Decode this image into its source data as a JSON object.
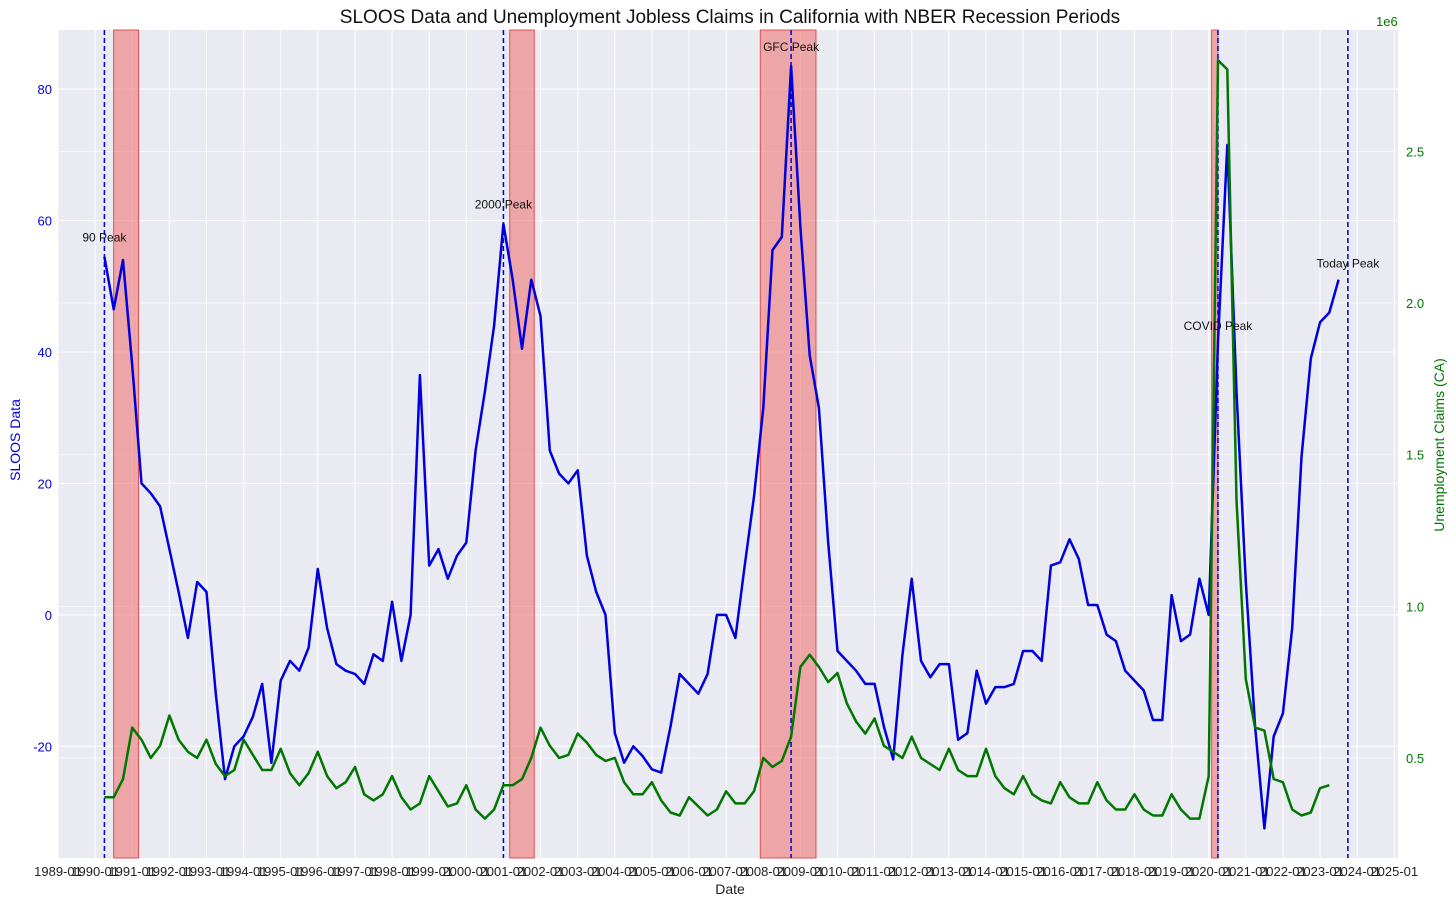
{
  "chart_data": {
    "type": "line",
    "title": "SLOOS Data and Unemployment Jobless Claims in California with NBER Recession Periods",
    "xlabel": "Date",
    "ylabel_left": "SLOOS Data",
    "ylabel_right": "Unemployment Claims (CA)",
    "right_multiplier": "1e6",
    "colors": {
      "left": "#0000dd",
      "right": "#007700",
      "recession": "#f08080",
      "peak_line": "#0000cc"
    },
    "xlim": [
      1989.0,
      2025.1
    ],
    "ylim_left": [
      -37,
      89
    ],
    "ylim_right": [
      0.17,
      2.9
    ],
    "x_ticks": [
      "1989-01",
      "1990-01",
      "1991-01",
      "1992-01",
      "1993-01",
      "1994-01",
      "1995-01",
      "1996-01",
      "1997-01",
      "1998-01",
      "1999-01",
      "2000-01",
      "2001-01",
      "2002-01",
      "2003-01",
      "2004-01",
      "2005-01",
      "2006-01",
      "2007-01",
      "2008-01",
      "2009-01",
      "2010-01",
      "2011-01",
      "2012-01",
      "2013-01",
      "2014-01",
      "2015-01",
      "2016-01",
      "2017-01",
      "2018-01",
      "2019-01",
      "2020-01",
      "2021-01",
      "2022-01",
      "2023-01",
      "2024-01",
      "2025-01"
    ],
    "y_ticks_left": [
      "-20",
      "0",
      "20",
      "40",
      "60",
      "80"
    ],
    "y_ticks_right": [
      "0.5",
      "1.0",
      "1.5",
      "2.0",
      "2.5"
    ],
    "grid": true,
    "recessions": [
      [
        1990.5,
        1991.17
      ],
      [
        2001.17,
        2001.83
      ],
      [
        2007.92,
        2009.42
      ],
      [
        2020.08,
        2020.25
      ]
    ],
    "peaks": [
      {
        "label": "90 Peak",
        "x": 1990.25,
        "y": 55
      },
      {
        "label": "2000 Peak",
        "x": 2001.0,
        "y": 60
      },
      {
        "label": "GFC Peak",
        "x": 2008.75,
        "y": 84
      },
      {
        "label": "COVID Peak",
        "x": 2020.25,
        "y": 41.5
      },
      {
        "label": "Today Peak",
        "x": 2023.75,
        "y": 51
      }
    ],
    "series": [
      {
        "axis": "left",
        "points": [
          [
            1990.25,
            54.5
          ],
          [
            1990.5,
            46.5
          ],
          [
            1990.75,
            54
          ],
          [
            1991.0,
            38
          ],
          [
            1991.25,
            20
          ],
          [
            1991.5,
            18.5
          ],
          [
            1991.75,
            16.5
          ],
          [
            1992.0,
            10
          ],
          [
            1992.25,
            3.5
          ],
          [
            1992.5,
            -3.5
          ],
          [
            1992.75,
            5
          ],
          [
            1993.0,
            3.5
          ],
          [
            1993.25,
            -12
          ],
          [
            1993.5,
            -25
          ],
          [
            1993.75,
            -20
          ],
          [
            1994.0,
            -18.5
          ],
          [
            1994.25,
            -15.5
          ],
          [
            1994.5,
            -10.5
          ],
          [
            1994.75,
            -22.5
          ],
          [
            1995.0,
            -10
          ],
          [
            1995.25,
            -7
          ],
          [
            1995.5,
            -8.5
          ],
          [
            1995.75,
            -5
          ],
          [
            1996.0,
            7
          ],
          [
            1996.25,
            -2
          ],
          [
            1996.5,
            -7.5
          ],
          [
            1996.75,
            -8.5
          ],
          [
            1997.0,
            -9
          ],
          [
            1997.25,
            -10.5
          ],
          [
            1997.5,
            -6
          ],
          [
            1997.75,
            -7
          ],
          [
            1998.0,
            2
          ],
          [
            1998.25,
            -7
          ],
          [
            1998.5,
            0
          ],
          [
            1998.75,
            36.5
          ],
          [
            1999.0,
            7.5
          ],
          [
            1999.25,
            10
          ],
          [
            1999.5,
            5.5
          ],
          [
            1999.75,
            9
          ],
          [
            2000.0,
            11
          ],
          [
            2000.25,
            25
          ],
          [
            2000.5,
            34
          ],
          [
            2000.75,
            44
          ],
          [
            2001.0,
            59.5
          ],
          [
            2001.25,
            51
          ],
          [
            2001.5,
            40.5
          ],
          [
            2001.75,
            51
          ],
          [
            2002.0,
            45.5
          ],
          [
            2002.25,
            25
          ],
          [
            2002.5,
            21.5
          ],
          [
            2002.75,
            20
          ],
          [
            2003.0,
            22
          ],
          [
            2003.25,
            9
          ],
          [
            2003.5,
            3.5
          ],
          [
            2003.75,
            0
          ],
          [
            2004.0,
            -18
          ],
          [
            2004.25,
            -22.5
          ],
          [
            2004.5,
            -20
          ],
          [
            2004.75,
            -21.5
          ],
          [
            2005.0,
            -23.5
          ],
          [
            2005.25,
            -24
          ],
          [
            2005.5,
            -17
          ],
          [
            2005.75,
            -9
          ],
          [
            2006.0,
            -10.5
          ],
          [
            2006.25,
            -12
          ],
          [
            2006.5,
            -9
          ],
          [
            2006.75,
            0
          ],
          [
            2007.0,
            0
          ],
          [
            2007.25,
            -3.5
          ],
          [
            2007.5,
            7.5
          ],
          [
            2007.75,
            18
          ],
          [
            2008.0,
            31.5
          ],
          [
            2008.25,
            55.5
          ],
          [
            2008.5,
            57.5
          ],
          [
            2008.75,
            83.5
          ],
          [
            2009.0,
            59
          ],
          [
            2009.25,
            39.5
          ],
          [
            2009.5,
            31.5
          ],
          [
            2009.75,
            11
          ],
          [
            2010.0,
            -5.5
          ],
          [
            2010.25,
            -7
          ],
          [
            2010.5,
            -8.5
          ],
          [
            2010.75,
            -10.5
          ],
          [
            2011.0,
            -10.5
          ],
          [
            2011.25,
            -17
          ],
          [
            2011.5,
            -22
          ],
          [
            2011.75,
            -6
          ],
          [
            2012.0,
            5.5
          ],
          [
            2012.25,
            -7
          ],
          [
            2012.5,
            -9.5
          ],
          [
            2012.75,
            -7.5
          ],
          [
            2013.0,
            -7.5
          ],
          [
            2013.25,
            -19
          ],
          [
            2013.5,
            -18
          ],
          [
            2013.75,
            -8.5
          ],
          [
            2014.0,
            -13.5
          ],
          [
            2014.25,
            -11
          ],
          [
            2014.5,
            -11
          ],
          [
            2014.75,
            -10.5
          ],
          [
            2015.0,
            -5.5
          ],
          [
            2015.25,
            -5.5
          ],
          [
            2015.5,
            -7
          ],
          [
            2015.75,
            7.5
          ],
          [
            2016.0,
            8
          ],
          [
            2016.25,
            11.5
          ],
          [
            2016.5,
            8.5
          ],
          [
            2016.75,
            1.5
          ],
          [
            2017.0,
            1.5
          ],
          [
            2017.25,
            -3
          ],
          [
            2017.5,
            -4
          ],
          [
            2017.75,
            -8.5
          ],
          [
            2018.0,
            -10
          ],
          [
            2018.25,
            -11.5
          ],
          [
            2018.5,
            -16
          ],
          [
            2018.75,
            -16
          ],
          [
            2019.0,
            3
          ],
          [
            2019.25,
            -4
          ],
          [
            2019.5,
            -3
          ],
          [
            2019.75,
            5.5
          ],
          [
            2020.0,
            0
          ],
          [
            2020.25,
            41.5
          ],
          [
            2020.5,
            71.5
          ],
          [
            2020.75,
            34
          ],
          [
            2021.0,
            5
          ],
          [
            2021.25,
            -17
          ],
          [
            2021.5,
            -32.5
          ],
          [
            2021.75,
            -18.5
          ],
          [
            2022.0,
            -15
          ],
          [
            2022.25,
            -2
          ],
          [
            2022.5,
            24
          ],
          [
            2022.75,
            39
          ],
          [
            2023.0,
            44.5
          ],
          [
            2023.25,
            46
          ],
          [
            2023.5,
            51
          ]
        ]
      },
      {
        "axis": "right",
        "points": [
          [
            1990.25,
            0.37
          ],
          [
            1990.5,
            0.37
          ],
          [
            1990.75,
            0.43
          ],
          [
            1991.0,
            0.6
          ],
          [
            1991.25,
            0.56
          ],
          [
            1991.5,
            0.5
          ],
          [
            1991.75,
            0.54
          ],
          [
            1992.0,
            0.64
          ],
          [
            1992.25,
            0.56
          ],
          [
            1992.5,
            0.52
          ],
          [
            1992.75,
            0.5
          ],
          [
            1993.0,
            0.56
          ],
          [
            1993.25,
            0.48
          ],
          [
            1993.5,
            0.44
          ],
          [
            1993.75,
            0.46
          ],
          [
            1994.0,
            0.56
          ],
          [
            1994.25,
            0.51
          ],
          [
            1994.5,
            0.46
          ],
          [
            1994.75,
            0.46
          ],
          [
            1995.0,
            0.53
          ],
          [
            1995.25,
            0.45
          ],
          [
            1995.5,
            0.41
          ],
          [
            1995.75,
            0.45
          ],
          [
            1996.0,
            0.52
          ],
          [
            1996.25,
            0.44
          ],
          [
            1996.5,
            0.4
          ],
          [
            1996.75,
            0.42
          ],
          [
            1997.0,
            0.47
          ],
          [
            1997.25,
            0.38
          ],
          [
            1997.5,
            0.36
          ],
          [
            1997.75,
            0.38
          ],
          [
            1998.0,
            0.44
          ],
          [
            1998.25,
            0.37
          ],
          [
            1998.5,
            0.33
          ],
          [
            1998.75,
            0.35
          ],
          [
            1999.0,
            0.44
          ],
          [
            1999.25,
            0.39
          ],
          [
            1999.5,
            0.34
          ],
          [
            1999.75,
            0.35
          ],
          [
            2000.0,
            0.41
          ],
          [
            2000.25,
            0.33
          ],
          [
            2000.5,
            0.3
          ],
          [
            2000.75,
            0.33
          ],
          [
            2001.0,
            0.41
          ],
          [
            2001.25,
            0.41
          ],
          [
            2001.5,
            0.43
          ],
          [
            2001.75,
            0.5
          ],
          [
            2002.0,
            0.6
          ],
          [
            2002.25,
            0.54
          ],
          [
            2002.5,
            0.5
          ],
          [
            2002.75,
            0.51
          ],
          [
            2003.0,
            0.58
          ],
          [
            2003.25,
            0.55
          ],
          [
            2003.5,
            0.51
          ],
          [
            2003.75,
            0.49
          ],
          [
            2004.0,
            0.5
          ],
          [
            2004.25,
            0.42
          ],
          [
            2004.5,
            0.38
          ],
          [
            2004.75,
            0.38
          ],
          [
            2005.0,
            0.42
          ],
          [
            2005.25,
            0.36
          ],
          [
            2005.5,
            0.32
          ],
          [
            2005.75,
            0.31
          ],
          [
            2006.0,
            0.37
          ],
          [
            2006.25,
            0.34
          ],
          [
            2006.5,
            0.31
          ],
          [
            2006.75,
            0.33
          ],
          [
            2007.0,
            0.39
          ],
          [
            2007.25,
            0.35
          ],
          [
            2007.5,
            0.35
          ],
          [
            2007.75,
            0.39
          ],
          [
            2008.0,
            0.5
          ],
          [
            2008.25,
            0.47
          ],
          [
            2008.5,
            0.49
          ],
          [
            2008.75,
            0.57
          ],
          [
            2009.0,
            0.8
          ],
          [
            2009.25,
            0.84
          ],
          [
            2009.5,
            0.8
          ],
          [
            2009.75,
            0.75
          ],
          [
            2010.0,
            0.78
          ],
          [
            2010.25,
            0.68
          ],
          [
            2010.5,
            0.62
          ],
          [
            2010.75,
            0.58
          ],
          [
            2011.0,
            0.63
          ],
          [
            2011.25,
            0.54
          ],
          [
            2011.5,
            0.52
          ],
          [
            2011.75,
            0.5
          ],
          [
            2012.0,
            0.57
          ],
          [
            2012.25,
            0.5
          ],
          [
            2012.5,
            0.48
          ],
          [
            2012.75,
            0.46
          ],
          [
            2013.0,
            0.53
          ],
          [
            2013.25,
            0.46
          ],
          [
            2013.5,
            0.44
          ],
          [
            2013.75,
            0.44
          ],
          [
            2014.0,
            0.53
          ],
          [
            2014.25,
            0.44
          ],
          [
            2014.5,
            0.4
          ],
          [
            2014.75,
            0.38
          ],
          [
            2015.0,
            0.44
          ],
          [
            2015.25,
            0.38
          ],
          [
            2015.5,
            0.36
          ],
          [
            2015.75,
            0.35
          ],
          [
            2016.0,
            0.42
          ],
          [
            2016.25,
            0.37
          ],
          [
            2016.5,
            0.35
          ],
          [
            2016.75,
            0.35
          ],
          [
            2017.0,
            0.42
          ],
          [
            2017.25,
            0.36
          ],
          [
            2017.5,
            0.33
          ],
          [
            2017.75,
            0.33
          ],
          [
            2018.0,
            0.38
          ],
          [
            2018.25,
            0.33
          ],
          [
            2018.5,
            0.31
          ],
          [
            2018.75,
            0.31
          ],
          [
            2019.0,
            0.38
          ],
          [
            2019.25,
            0.33
          ],
          [
            2019.5,
            0.3
          ],
          [
            2019.75,
            0.3
          ],
          [
            2020.0,
            0.44
          ],
          [
            2020.25,
            2.8
          ],
          [
            2020.5,
            2.77
          ],
          [
            2020.75,
            1.35
          ],
          [
            2021.0,
            0.76
          ],
          [
            2021.25,
            0.6
          ],
          [
            2021.5,
            0.59
          ],
          [
            2021.75,
            0.43
          ],
          [
            2022.0,
            0.42
          ],
          [
            2022.25,
            0.33
          ],
          [
            2022.5,
            0.31
          ],
          [
            2022.75,
            0.32
          ],
          [
            2023.0,
            0.4
          ],
          [
            2023.25,
            0.41
          ]
        ]
      }
    ]
  }
}
